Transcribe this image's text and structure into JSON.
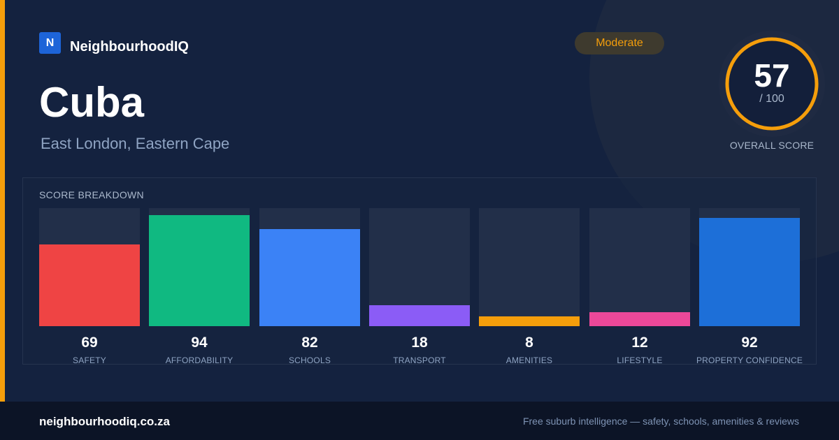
{
  "brand": {
    "logo_letter": "N",
    "name": "NeighbourhoodIQ",
    "logo_color": "#1d64d8"
  },
  "suburb": {
    "name": "Cuba",
    "location": "East London, Eastern Cape"
  },
  "badge": {
    "label": "Moderate",
    "color": "#f59e0b"
  },
  "overall": {
    "score": "57",
    "max_label": "/ 100",
    "caption": "OVERALL SCORE",
    "value": 57,
    "max": 100,
    "ring_color": "#f59e0b"
  },
  "breakdown": {
    "title": "SCORE BREAKDOWN"
  },
  "chart_data": {
    "type": "bar",
    "title": "SCORE BREAKDOWN",
    "categories": [
      "SAFETY",
      "AFFORDABILITY",
      "SCHOOLS",
      "TRANSPORT",
      "AMENITIES",
      "LIFESTYLE",
      "PROPERTY CONFIDENCE"
    ],
    "values": [
      69,
      94,
      82,
      18,
      8,
      12,
      92
    ],
    "value_labels": [
      "69",
      "94",
      "82",
      "18",
      "8",
      "12",
      "92"
    ],
    "colors": [
      "#ef4444",
      "#10b981",
      "#3b82f6",
      "#8b5cf6",
      "#f59e0b",
      "#ec4899",
      "#1d6fd8"
    ],
    "ylim": [
      0,
      100
    ],
    "grid": false
  },
  "footer": {
    "url": "neighbourhoodiq.co.za",
    "tagline": "Free suburb intelligence — safety, schools, amenities & reviews"
  },
  "colors": {
    "accent": "#f59e0b",
    "background": "#14223f",
    "footer": "#0c1426"
  }
}
